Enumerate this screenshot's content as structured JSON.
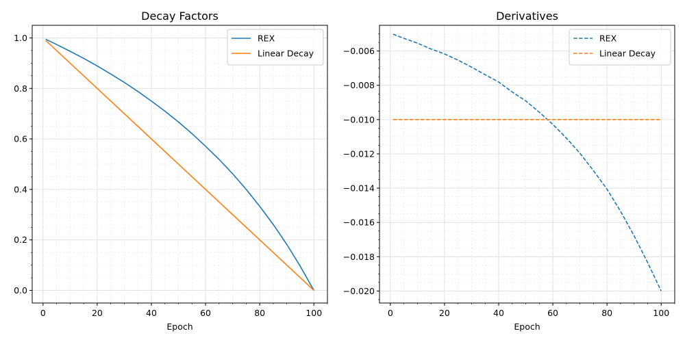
{
  "chart_data": [
    {
      "type": "line",
      "title": "Decay Factors",
      "xlabel": "Epoch",
      "ylabel": "",
      "xlim": [
        -4,
        105
      ],
      "ylim": [
        -0.05,
        1.05
      ],
      "xticks": [
        0,
        20,
        40,
        60,
        80,
        100
      ],
      "xtick_labels": [
        "0",
        "20",
        "40",
        "60",
        "80",
        "100"
      ],
      "yticks": [
        0.0,
        0.2,
        0.4,
        0.6,
        0.8,
        1.0
      ],
      "ytick_labels": [
        "0.0",
        "0.2",
        "0.4",
        "0.6",
        "0.8",
        "1.0"
      ],
      "grid": true,
      "minor_grid": true,
      "legend_position": "top-right",
      "series": [
        {
          "name": "REX",
          "color": "#1f77b4",
          "style": "solid",
          "x": [
            1,
            5,
            10,
            15,
            20,
            25,
            30,
            35,
            40,
            45,
            50,
            55,
            60,
            65,
            70,
            75,
            80,
            85,
            90,
            95,
            100
          ],
          "y": [
            0.995,
            0.974,
            0.947,
            0.919,
            0.889,
            0.857,
            0.824,
            0.788,
            0.75,
            0.71,
            0.667,
            0.621,
            0.571,
            0.519,
            0.462,
            0.4,
            0.333,
            0.261,
            0.182,
            0.095,
            0.0
          ]
        },
        {
          "name": "Linear Decay",
          "color": "#ff7f0e",
          "style": "solid",
          "x": [
            1,
            100
          ],
          "y": [
            0.99,
            0.0
          ]
        }
      ]
    },
    {
      "type": "line",
      "title": "Derivatives",
      "xlabel": "Epoch",
      "ylabel": "",
      "xlim": [
        -4,
        105
      ],
      "ylim": [
        -0.0207,
        -0.0045
      ],
      "xticks": [
        0,
        20,
        40,
        60,
        80,
        100
      ],
      "xtick_labels": [
        "0",
        "20",
        "40",
        "60",
        "80",
        "100"
      ],
      "yticks": [
        -0.02,
        -0.018,
        -0.016,
        -0.014,
        -0.012,
        -0.01,
        -0.008,
        -0.006
      ],
      "ytick_labels": [
        "−0.020",
        "−0.018",
        "−0.016",
        "−0.014",
        "−0.012",
        "−0.010",
        "−0.008",
        "−0.006"
      ],
      "grid": true,
      "minor_grid": true,
      "legend_position": "top-right",
      "series": [
        {
          "name": "REX",
          "color": "#1f77b4",
          "style": "dashed",
          "x": [
            1,
            5,
            10,
            15,
            20,
            25,
            30,
            35,
            40,
            45,
            50,
            55,
            60,
            65,
            70,
            75,
            80,
            85,
            90,
            95,
            100
          ],
          "y": [
            -0.00502,
            -0.00526,
            -0.00554,
            -0.00588,
            -0.00617,
            -0.00653,
            -0.00694,
            -0.00738,
            -0.00781,
            -0.00839,
            -0.00891,
            -0.00957,
            -0.01028,
            -0.01108,
            -0.01196,
            -0.01298,
            -0.01406,
            -0.01535,
            -0.01678,
            -0.01834,
            -0.02
          ]
        },
        {
          "name": "Linear Decay",
          "color": "#ff7f0e",
          "style": "dashed",
          "x": [
            1,
            100
          ],
          "y": [
            -0.01,
            -0.01
          ]
        }
      ]
    }
  ]
}
